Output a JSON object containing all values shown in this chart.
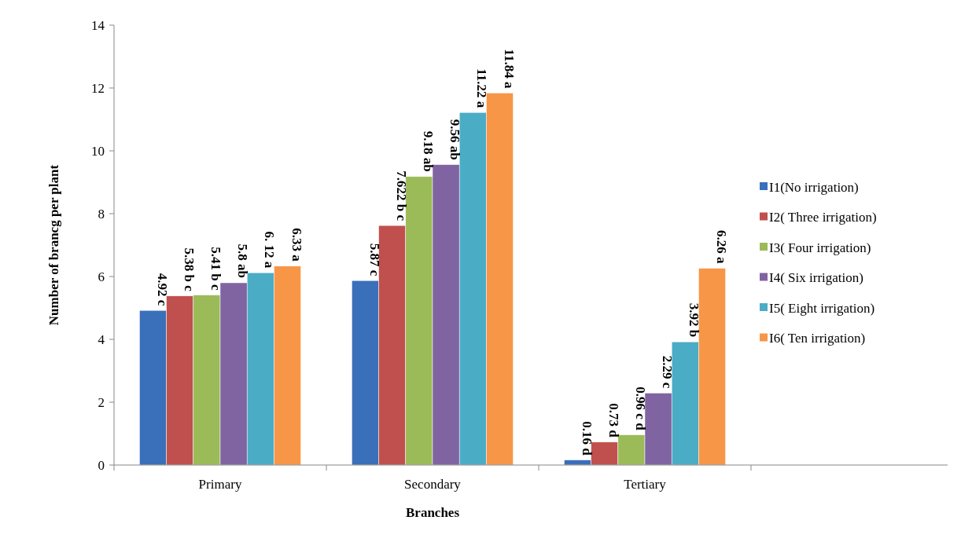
{
  "chart_data": {
    "type": "bar",
    "xlabel": "Branches",
    "ylabel": "Number of brancg per plant",
    "categories": [
      "Primary",
      "Secondary",
      "Tertiary"
    ],
    "series": [
      {
        "name": "I1(No irrigation)",
        "color": "#3a6fba",
        "values": [
          4.92,
          5.87,
          0.16
        ],
        "value_labels": [
          "4.92 c",
          "5.87 c",
          "0.16 d"
        ]
      },
      {
        "name": "I2( Three irrigation)",
        "color": "#c0504d",
        "values": [
          5.38,
          7.622,
          0.73
        ],
        "value_labels": [
          "5.38 b c",
          "7.622 b c",
          "0.73 d"
        ]
      },
      {
        "name": "I3( Four irrigation)",
        "color": "#9bbb59",
        "values": [
          5.41,
          9.18,
          0.96
        ],
        "value_labels": [
          "5.41 b c",
          "9.18 ab",
          "0.96 c d"
        ]
      },
      {
        "name": "I4( Six irrigation)",
        "color": "#8064a2",
        "values": [
          5.8,
          9.56,
          2.29
        ],
        "value_labels": [
          "5.8 ab",
          "9.56 ab",
          "2.29 c"
        ]
      },
      {
        "name": "I5( Eight irrigation)",
        "color": "#4bacc6",
        "values": [
          6.12,
          11.22,
          3.92
        ],
        "value_labels": [
          "6. 12 a",
          "11.22 a",
          "3.92 b"
        ]
      },
      {
        "name": "I6( Ten irrigation)",
        "color": "#f79646",
        "values": [
          6.33,
          11.84,
          6.26
        ],
        "value_labels": [
          "6.33  a",
          "11.84 a",
          "6.26 a"
        ]
      }
    ],
    "ylim": [
      0,
      14
    ],
    "yticks": [
      0,
      2,
      4,
      6,
      8,
      10,
      12,
      14
    ],
    "grid": false,
    "legend": "right"
  }
}
